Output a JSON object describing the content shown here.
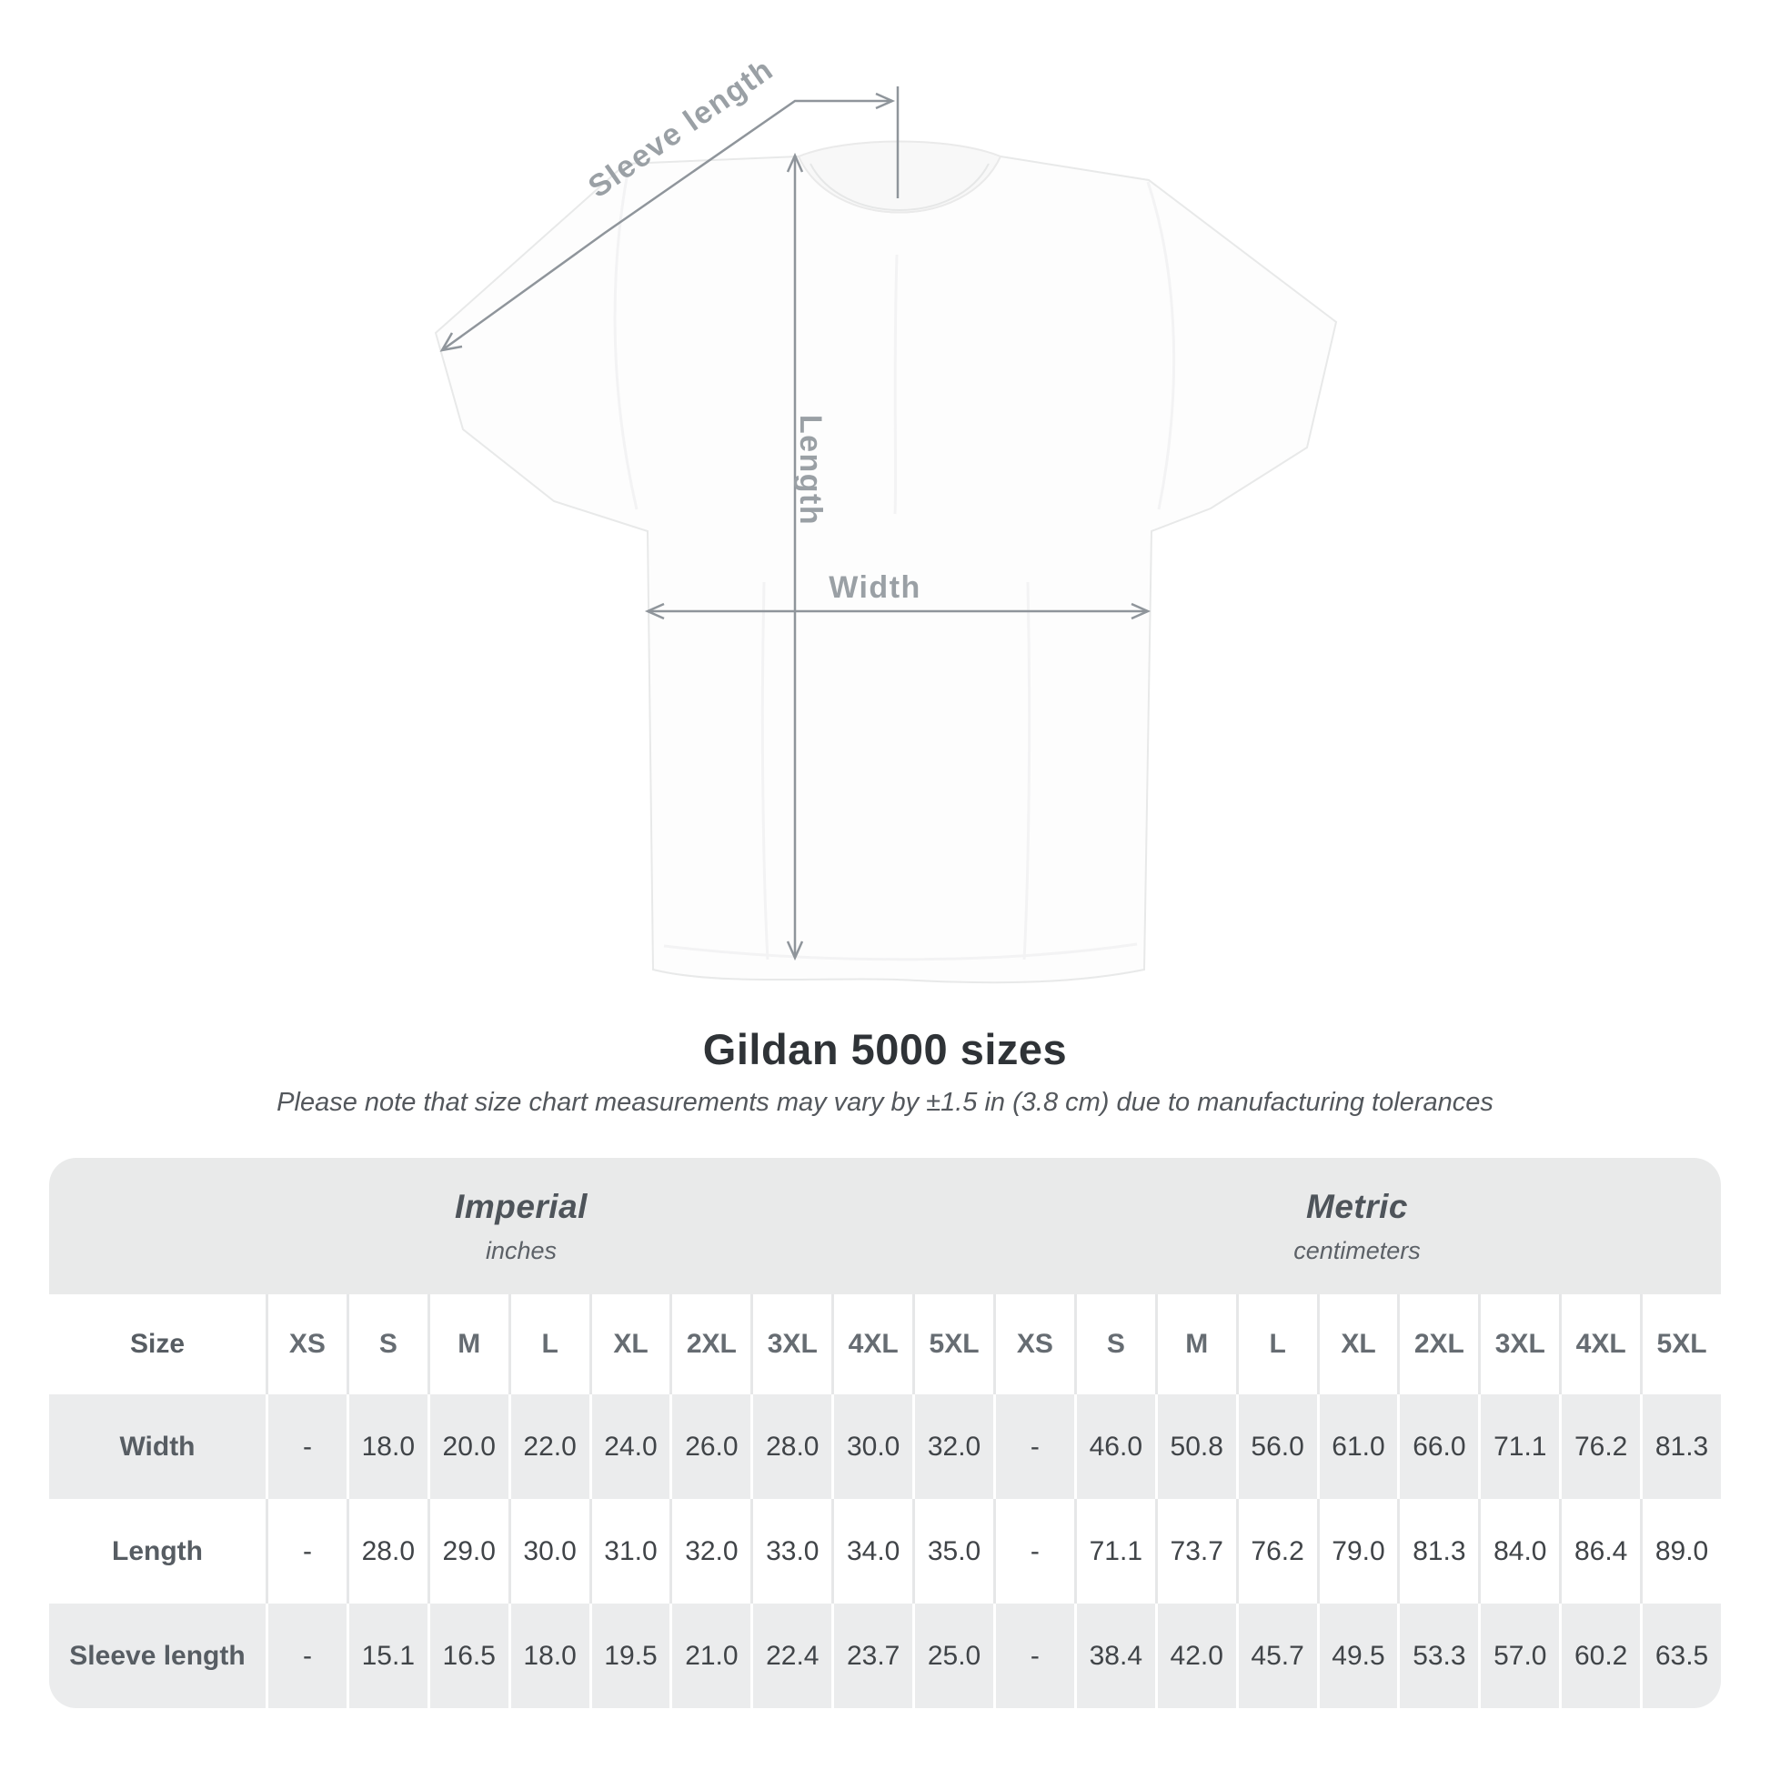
{
  "diagram": {
    "sleeve_length_label": "Sleeve length",
    "length_label": "Length",
    "width_label": "Width"
  },
  "title": "Gildan 5000 sizes",
  "note": "Please note that size chart measurements may vary by ±1.5 in (3.8 cm) due to manufacturing tolerances",
  "table": {
    "size_header": "Size",
    "sections": [
      {
        "name": "Imperial",
        "unit": "inches"
      },
      {
        "name": "Metric",
        "unit": "centimeters"
      }
    ],
    "columns": [
      "XS",
      "S",
      "M",
      "L",
      "XL",
      "2XL",
      "3XL",
      "4XL",
      "5XL",
      "XS",
      "S",
      "M",
      "L",
      "XL",
      "2XL",
      "3XL",
      "4XL",
      "5XL"
    ],
    "rows": [
      {
        "label": "Width",
        "values": [
          "-",
          "18.0",
          "20.0",
          "22.0",
          "24.0",
          "26.0",
          "28.0",
          "30.0",
          "32.0",
          "-",
          "46.0",
          "50.8",
          "56.0",
          "61.0",
          "66.0",
          "71.1",
          "76.2",
          "81.3"
        ]
      },
      {
        "label": "Length",
        "values": [
          "-",
          "28.0",
          "29.0",
          "30.0",
          "31.0",
          "32.0",
          "33.0",
          "34.0",
          "35.0",
          "-",
          "71.1",
          "73.7",
          "76.2",
          "79.0",
          "81.3",
          "84.0",
          "86.4",
          "89.0"
        ]
      },
      {
        "label": "Sleeve length",
        "values": [
          "-",
          "15.1",
          "16.5",
          "18.0",
          "19.5",
          "21.0",
          "22.4",
          "23.7",
          "25.0",
          "-",
          "38.4",
          "42.0",
          "45.7",
          "49.5",
          "53.3",
          "57.0",
          "60.2",
          "63.5"
        ]
      }
    ]
  },
  "colors": {
    "annotation": "#8f959b",
    "diagram_text": "#9aa0a5",
    "band_bg": "#e9eaea",
    "row_shaded": "#ebeced",
    "title_text": "#2f3337"
  }
}
